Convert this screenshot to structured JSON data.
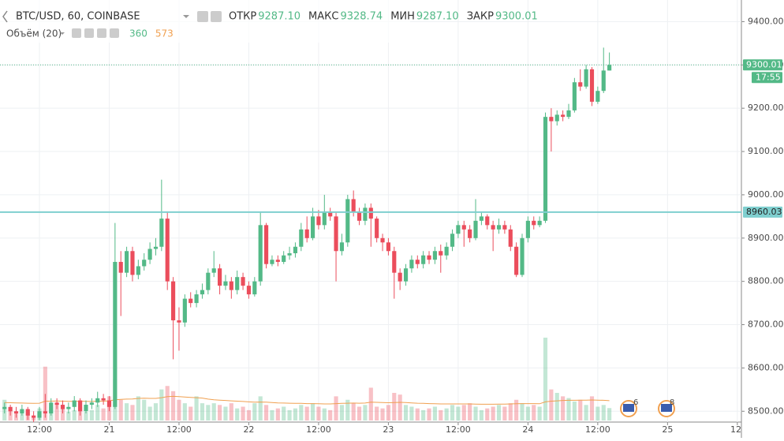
{
  "chart_data": {
    "type": "candlestick",
    "title": "BTC/USD, 60, COINBASE",
    "ohlc_legend": [
      {
        "name": "ОТКР",
        "value": "9287.10"
      },
      {
        "name": "МАКС",
        "value": "9328.74"
      },
      {
        "name": "МИН",
        "value": "9287.10"
      },
      {
        "name": "ЗАКР",
        "value": "9300.01"
      }
    ],
    "volume_title": "Объём (20)",
    "volume_last": "360",
    "volume_ma_last": "573",
    "up_color": "#53b987",
    "down_color": "#eb4d5c",
    "ma_color": "#f0a050",
    "x": [
      -6,
      -5,
      -4,
      -3,
      -2,
      -1,
      0,
      1,
      2,
      3,
      4,
      5,
      6,
      7,
      8,
      9,
      10,
      11,
      12,
      13,
      14,
      15,
      16,
      17,
      18,
      19,
      20,
      21,
      22,
      23,
      24,
      25,
      26,
      27,
      28,
      29,
      30,
      31,
      32,
      33,
      34,
      35,
      36,
      37,
      38,
      39,
      40,
      41,
      42,
      43,
      44,
      45,
      46,
      47,
      48,
      49,
      50,
      51,
      52,
      53,
      54,
      55,
      56,
      57,
      58,
      59,
      60,
      61,
      62,
      63,
      64,
      65,
      66,
      67,
      68,
      69,
      70,
      71,
      72,
      73,
      74,
      75,
      76,
      77,
      78,
      79,
      80,
      81,
      82,
      83,
      84,
      85,
      86,
      87,
      88,
      89,
      90,
      91,
      92,
      93,
      94,
      95,
      96,
      97,
      98
    ],
    "open": [
      8505,
      8510,
      8500,
      8495,
      8505,
      8490,
      8485,
      8500,
      8495,
      8520,
      8515,
      8505,
      8510,
      8525,
      8500,
      8515,
      8520,
      8530,
      8525,
      8510,
      8845,
      8820,
      8870,
      8815,
      8835,
      8850,
      8875,
      8880,
      8945,
      8800,
      8710,
      8705,
      8760,
      8750,
      8770,
      8780,
      8820,
      8830,
      8790,
      8800,
      8780,
      8810,
      8790,
      8770,
      8800,
      8930,
      8840,
      8850,
      8845,
      8860,
      8865,
      8880,
      8920,
      8900,
      8950,
      8930,
      8960,
      8950,
      8870,
      8890,
      8990,
      8960,
      8940,
      8970,
      8945,
      8900,
      8890,
      8870,
      8820,
      8800,
      8830,
      8850,
      8840,
      8860,
      8850,
      8870,
      8860,
      8880,
      8910,
      8930,
      8920,
      8900,
      8940,
      8950,
      8930,
      8920,
      8930,
      8920,
      8880,
      8815,
      8900,
      8940,
      8930,
      8940,
      9180,
      9170,
      9185,
      9180,
      9195,
      9260,
      9250,
      9290,
      9215,
      9240,
      9287.1
    ],
    "high": [
      8520,
      8515,
      8510,
      8515,
      8510,
      8500,
      8510,
      8540,
      8530,
      8530,
      8525,
      8520,
      8535,
      8530,
      8525,
      8530,
      8545,
      8540,
      8535,
      8935,
      8870,
      8880,
      8880,
      8850,
      8865,
      8890,
      8900,
      9035,
      8960,
      8810,
      8740,
      8770,
      8775,
      8780,
      8795,
      8830,
      8870,
      8840,
      8815,
      8810,
      8825,
      8820,
      8800,
      8810,
      8960,
      8935,
      8860,
      8860,
      8870,
      8880,
      8890,
      8935,
      8950,
      8970,
      8965,
      9000,
      8970,
      8960,
      8910,
      9000,
      9010,
      8970,
      8980,
      8980,
      8950,
      8910,
      8900,
      8880,
      8830,
      8840,
      8860,
      8860,
      8870,
      8870,
      8880,
      8885,
      8890,
      8920,
      8940,
      8940,
      8930,
      8990,
      8960,
      8955,
      8940,
      8945,
      8940,
      8930,
      8890,
      8910,
      8950,
      8950,
      8950,
      9190,
      9200,
      9195,
      9195,
      9210,
      9270,
      9290,
      9300,
      9295,
      9250,
      9340,
      9328.74
    ],
    "low": [
      8495,
      8490,
      8485,
      8490,
      8480,
      8475,
      8480,
      8485,
      8490,
      8505,
      8495,
      8495,
      8500,
      8490,
      8495,
      8505,
      8510,
      8515,
      8500,
      8505,
      8720,
      8810,
      8800,
      8805,
      8825,
      8840,
      8860,
      8870,
      8780,
      8620,
      8640,
      8695,
      8740,
      8740,
      8760,
      8770,
      8810,
      8770,
      8780,
      8760,
      8770,
      8780,
      8760,
      8765,
      8790,
      8830,
      8835,
      8835,
      8840,
      8850,
      8855,
      8870,
      8890,
      8895,
      8920,
      8920,
      8940,
      8800,
      8860,
      8880,
      8950,
      8930,
      8930,
      8880,
      8890,
      8870,
      8860,
      8760,
      8780,
      8790,
      8820,
      8830,
      8830,
      8840,
      8840,
      8820,
      8850,
      8870,
      8900,
      8880,
      8890,
      8895,
      8930,
      8920,
      8870,
      8910,
      8910,
      8870,
      8810,
      8810,
      8890,
      8920,
      8925,
      8935,
      9100,
      9160,
      9170,
      9175,
      9190,
      9240,
      9245,
      9205,
      9210,
      9235,
      9287.1
    ],
    "close": [
      8510,
      8500,
      8495,
      8505,
      8490,
      8485,
      8500,
      8495,
      8520,
      8515,
      8505,
      8510,
      8525,
      8500,
      8515,
      8520,
      8530,
      8525,
      8510,
      8845,
      8820,
      8870,
      8815,
      8835,
      8850,
      8875,
      8880,
      8945,
      8800,
      8710,
      8705,
      8760,
      8750,
      8770,
      8780,
      8820,
      8830,
      8790,
      8800,
      8780,
      8810,
      8790,
      8770,
      8800,
      8930,
      8840,
      8850,
      8845,
      8860,
      8865,
      8880,
      8920,
      8900,
      8950,
      8930,
      8960,
      8950,
      8870,
      8890,
      8990,
      8960,
      8940,
      8970,
      8945,
      8900,
      8890,
      8870,
      8820,
      8800,
      8830,
      8850,
      8840,
      8860,
      8850,
      8870,
      8860,
      8880,
      8910,
      8930,
      8920,
      8900,
      8940,
      8950,
      8930,
      8920,
      8930,
      8920,
      8880,
      8815,
      8900,
      8940,
      8930,
      8940,
      9180,
      9170,
      9185,
      9180,
      9195,
      9260,
      9250,
      9290,
      9215,
      9240,
      9287.1,
      9300.01
    ],
    "volume": [
      600,
      300,
      250,
      200,
      250,
      150,
      350,
      1560,
      400,
      500,
      350,
      250,
      300,
      400,
      250,
      300,
      450,
      350,
      700,
      1200,
      600,
      500,
      450,
      700,
      600,
      400,
      500,
      900,
      1000,
      850,
      600,
      500,
      400,
      700,
      500,
      450,
      500,
      450,
      400,
      500,
      350,
      400,
      300,
      500,
      700,
      450,
      300,
      350,
      400,
      300,
      350,
      450,
      400,
      500,
      400,
      350,
      300,
      700,
      450,
      600,
      500,
      400,
      450,
      950,
      400,
      350,
      450,
      800,
      750,
      450,
      400,
      350,
      300,
      350,
      400,
      300,
      350,
      450,
      400,
      450,
      500,
      400,
      300,
      350,
      400,
      450,
      400,
      500,
      600,
      500,
      400,
      450,
      400,
      2400,
      900,
      800,
      700,
      650,
      550,
      600,
      450,
      700,
      400,
      450,
      360
    ],
    "volume_ma": [
      520,
      515,
      510,
      505,
      500,
      495,
      500,
      560,
      560,
      565,
      560,
      555,
      555,
      560,
      555,
      550,
      560,
      560,
      570,
      600,
      610,
      620,
      625,
      640,
      645,
      640,
      640,
      660,
      690,
      700,
      690,
      680,
      670,
      660,
      650,
      620,
      600,
      590,
      580,
      570,
      560,
      550,
      540,
      530,
      535,
      530,
      520,
      510,
      505,
      500,
      495,
      495,
      490,
      490,
      485,
      480,
      480,
      490,
      495,
      500,
      505,
      500,
      505,
      530,
      525,
      520,
      515,
      520,
      525,
      520,
      510,
      500,
      495,
      490,
      485,
      480,
      480,
      480,
      480,
      480,
      480,
      475,
      470,
      470,
      470,
      475,
      475,
      480,
      485,
      490,
      490,
      490,
      485,
      540,
      560,
      570,
      580,
      585,
      585,
      590,
      590,
      595,
      590,
      585,
      573
    ],
    "xlim": [
      -6.78,
      120.7
    ],
    "xticks": [
      {
        "value": 0,
        "label": "12:00"
      },
      {
        "value": 12,
        "label": "21"
      },
      {
        "value": 24,
        "label": "12:00"
      },
      {
        "value": 36,
        "label": "22"
      },
      {
        "value": 48,
        "label": "12:00"
      },
      {
        "value": 60,
        "label": "23"
      },
      {
        "value": 72,
        "label": "12:00"
      },
      {
        "value": 84,
        "label": "24"
      },
      {
        "value": 96,
        "label": "12:00"
      },
      {
        "value": 108,
        "label": "25"
      },
      {
        "value": 120,
        "label": "12:"
      }
    ],
    "ylim": [
      8475,
      9450
    ],
    "yticks": [
      {
        "value": 8500,
        "label": "8500.00"
      },
      {
        "value": 8600,
        "label": "8600.00"
      },
      {
        "value": 8700,
        "label": "8700.00"
      },
      {
        "value": 8800,
        "label": "8800.00"
      },
      {
        "value": 8900,
        "label": "8900.00"
      },
      {
        "value": 9000,
        "label": "9000.00"
      },
      {
        "value": 9100,
        "label": "9100.00"
      },
      {
        "value": 9200,
        "label": "9200.00"
      },
      {
        "value": 9300,
        "label": "9300.00"
      },
      {
        "value": 9400,
        "label": "9400.00"
      }
    ],
    "grid": true,
    "price_line": {
      "value": 9300.01,
      "label": "9300.01",
      "time_label": "17:55",
      "color": "#53b987"
    },
    "level_line": {
      "value": 8960.03,
      "label": "8960.03",
      "color": "#7fcfcf"
    },
    "events": [
      "6",
      "8"
    ]
  }
}
